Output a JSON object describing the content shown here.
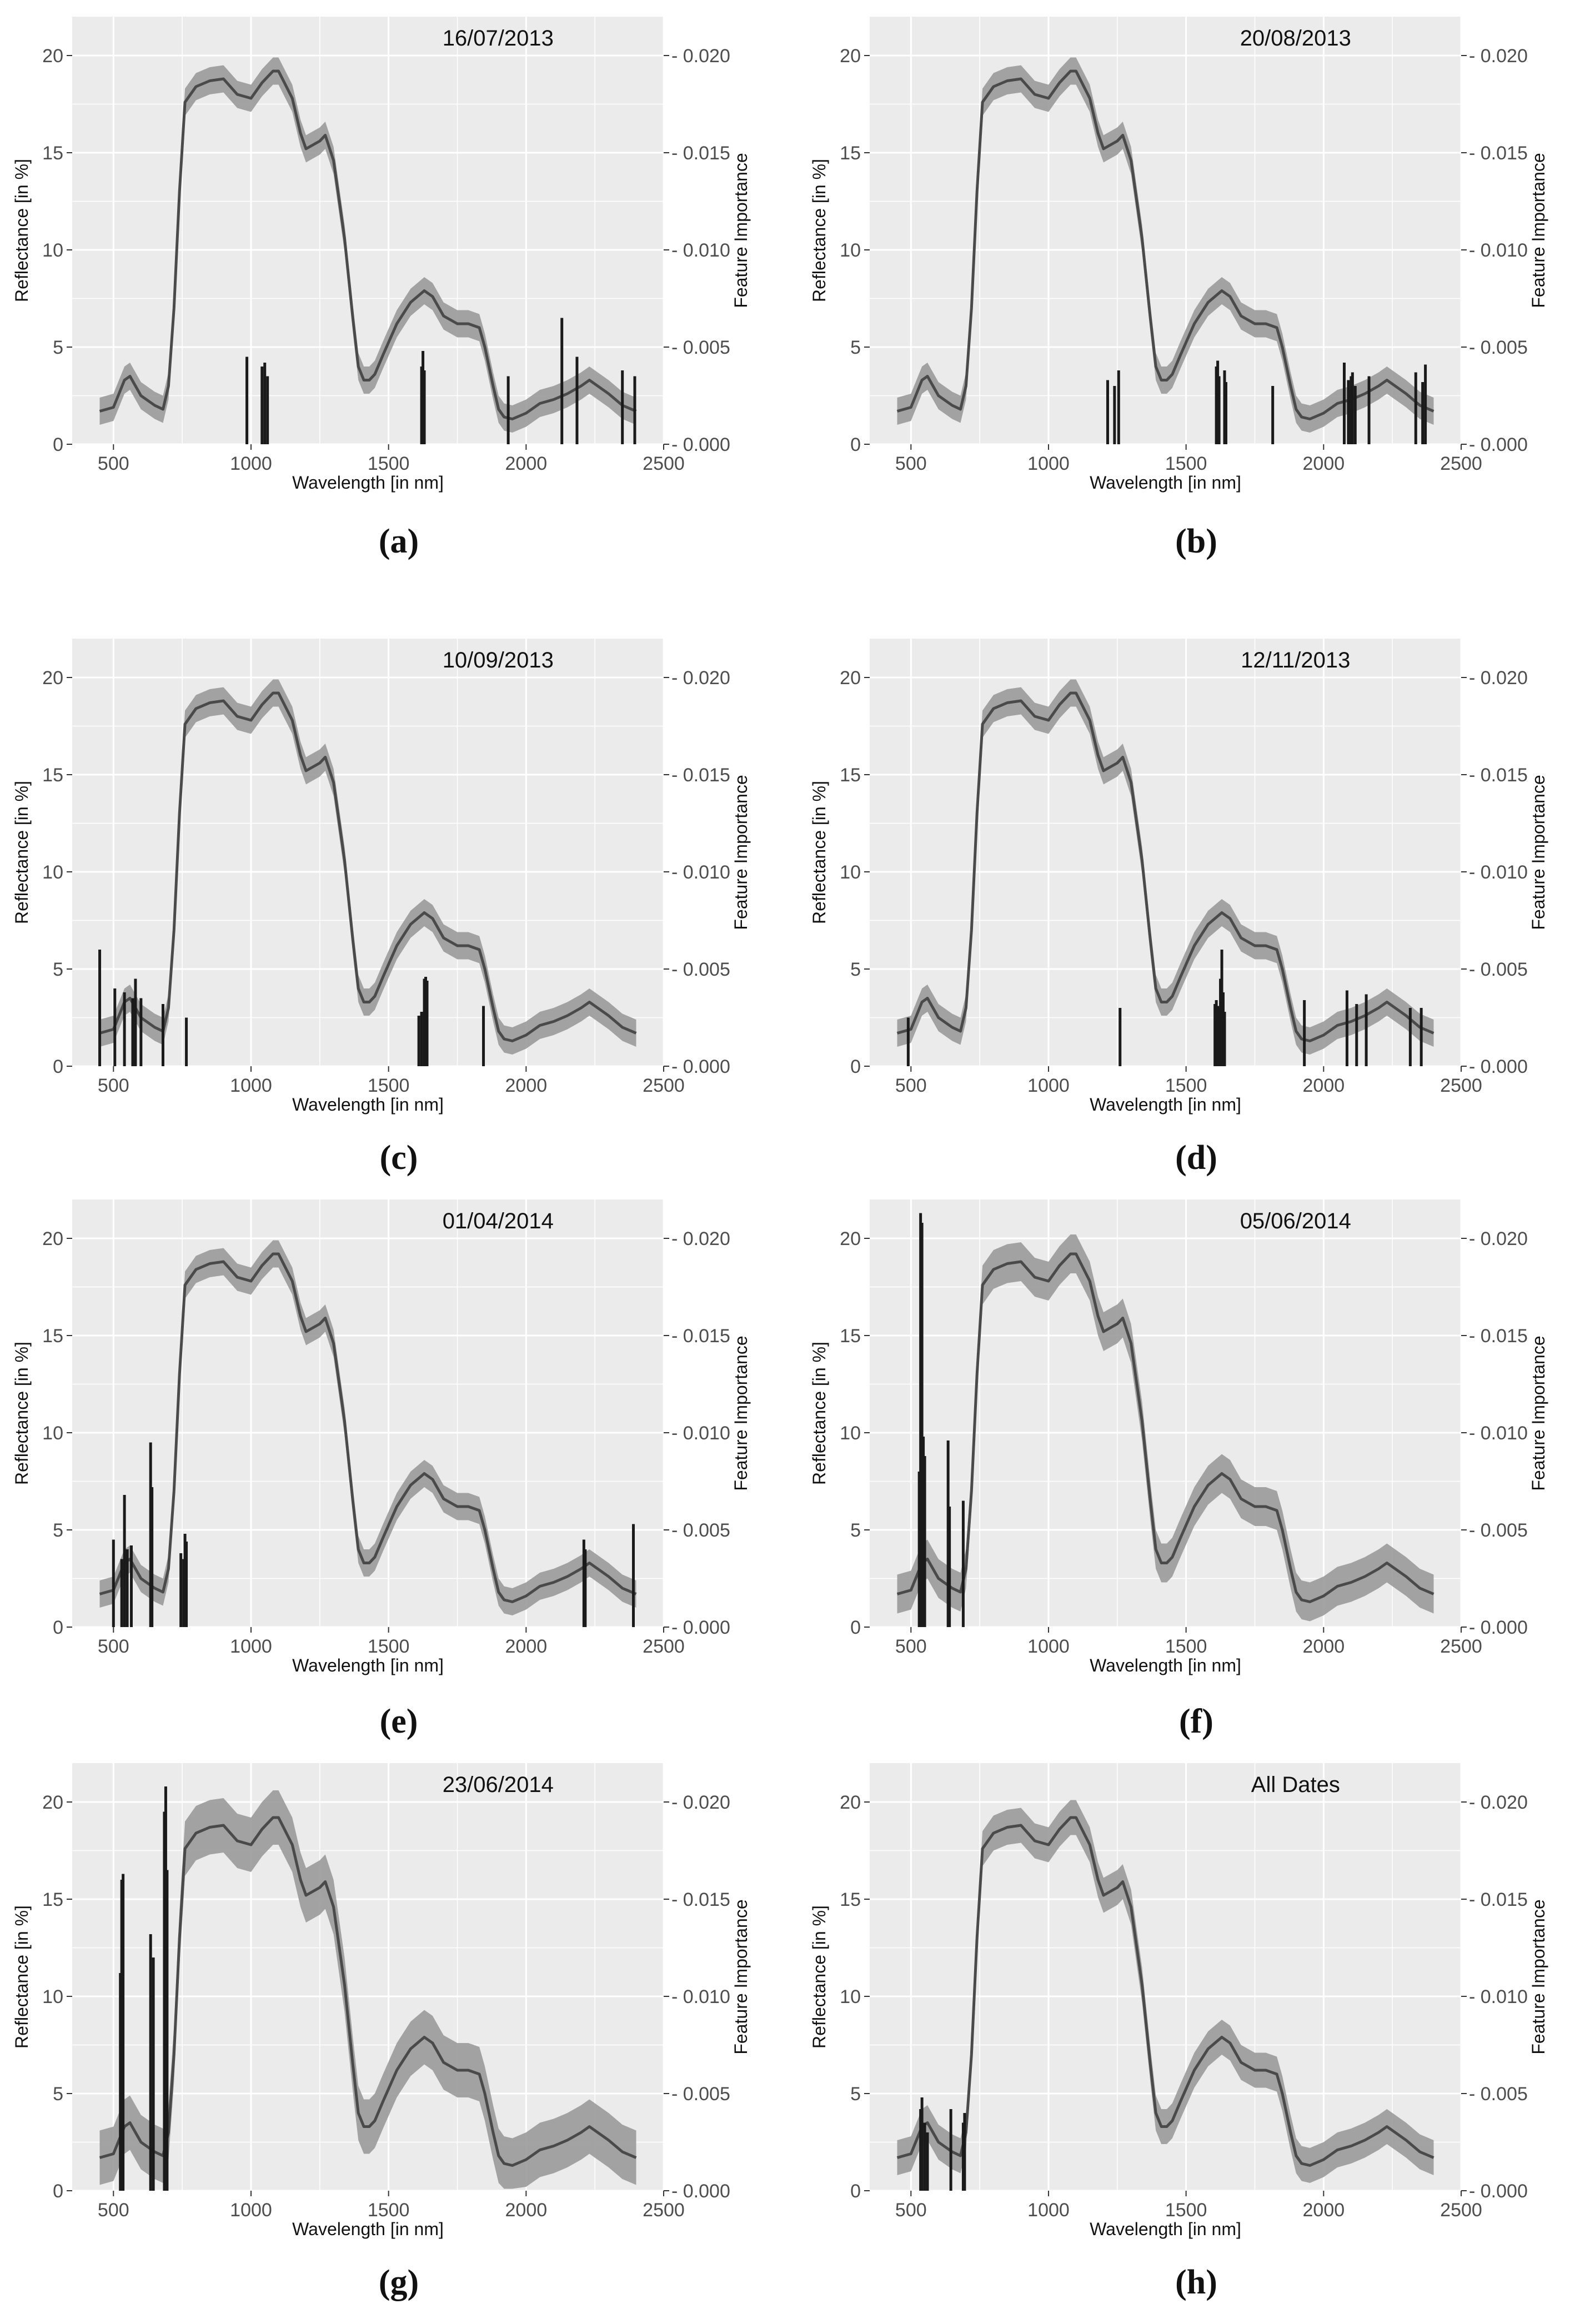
{
  "figure": {
    "shared_axes": {
      "xlabel": "Wavelength [in nm]",
      "ylabel_left": "Reflectance [in %]",
      "ylabel_right": "Feature Importance",
      "x_ticks": [
        500,
        1000,
        1500,
        2000,
        2500
      ],
      "y_left_ticks": [
        0,
        5,
        10,
        15,
        20
      ],
      "y_right_ticks": [
        "0.000",
        "0.005",
        "0.010",
        "0.015",
        "0.020"
      ]
    },
    "colors": {
      "panel_bg": "#ebebeb",
      "grid": "#ffffff",
      "band": "#9a9a9a",
      "line": "#4a4a4a",
      "bars": "#1a1a1a"
    }
  },
  "chart_data": [
    {
      "type": "line",
      "panel_label": "a",
      "title": "16/07/2013",
      "xlabel": "Wavelength [in nm]",
      "ylabel": "Reflectance [in %]",
      "y2label": "Feature Importance",
      "xlim": [
        350,
        2500
      ],
      "ylim": [
        0,
        22
      ],
      "y2lim": [
        0,
        0.022
      ],
      "series": [
        {
          "name": "Mean reflectance",
          "band_halfwidth": 0.7
        },
        {
          "name": "Feature importance",
          "bars": [
            [
              985,
              0.0045
            ],
            [
              1040,
              0.004
            ],
            [
              1050,
              0.0042
            ],
            [
              1060,
              0.0035
            ],
            [
              1620,
              0.004
            ],
            [
              1625,
              0.0048
            ],
            [
              1630,
              0.0038
            ],
            [
              1935,
              0.0035
            ],
            [
              2130,
              0.0065
            ],
            [
              2185,
              0.0045
            ],
            [
              2350,
              0.0038
            ],
            [
              2395,
              0.0035
            ]
          ]
        }
      ]
    },
    {
      "type": "line",
      "panel_label": "b",
      "title": "20/08/2013",
      "xlabel": "Wavelength [in nm]",
      "ylabel": "Reflectance [in %]",
      "y2label": "Feature Importance",
      "xlim": [
        350,
        2500
      ],
      "ylim": [
        0,
        22
      ],
      "y2lim": [
        0,
        0.022
      ],
      "series": [
        {
          "name": "Mean reflectance",
          "band_halfwidth": 0.7
        },
        {
          "name": "Feature importance",
          "bars": [
            [
              1215,
              0.0033
            ],
            [
              1240,
              0.003
            ],
            [
              1255,
              0.0038
            ],
            [
              1610,
              0.004
            ],
            [
              1615,
              0.0043
            ],
            [
              1620,
              0.0035
            ],
            [
              1640,
              0.0038
            ],
            [
              1645,
              0.0032
            ],
            [
              1815,
              0.003
            ],
            [
              2075,
              0.0042
            ],
            [
              2090,
              0.0033
            ],
            [
              2095,
              0.0028
            ],
            [
              2100,
              0.0035
            ],
            [
              2105,
              0.0037
            ],
            [
              2115,
              0.003
            ],
            [
              2165,
              0.0035
            ],
            [
              2335,
              0.0037
            ],
            [
              2360,
              0.0032
            ],
            [
              2370,
              0.0041
            ]
          ]
        }
      ]
    },
    {
      "type": "line",
      "panel_label": "c",
      "title": "10/09/2013",
      "xlabel": "Wavelength [in nm]",
      "ylabel": "Reflectance [in %]",
      "y2label": "Feature Importance",
      "xlim": [
        350,
        2500
      ],
      "ylim": [
        0,
        22
      ],
      "y2lim": [
        0,
        0.022
      ],
      "series": [
        {
          "name": "Mean reflectance",
          "band_halfwidth": 0.7
        },
        {
          "name": "Feature importance",
          "bars": [
            [
              450,
              0.006
            ],
            [
              505,
              0.004
            ],
            [
              540,
              0.0038
            ],
            [
              570,
              0.0035
            ],
            [
              580,
              0.0045
            ],
            [
              600,
              0.0035
            ],
            [
              680,
              0.0032
            ],
            [
              765,
              0.0025
            ],
            [
              1610,
              0.0026
            ],
            [
              1620,
              0.0028
            ],
            [
              1630,
              0.0045
            ],
            [
              1635,
              0.0046
            ],
            [
              1640,
              0.0044
            ],
            [
              1845,
              0.0031
            ]
          ]
        }
      ]
    },
    {
      "type": "line",
      "panel_label": "d",
      "title": "12/11/2013",
      "xlabel": "Wavelength [in nm]",
      "ylabel": "Reflectance [in %]",
      "y2label": "Feature Importance",
      "xlim": [
        350,
        2500
      ],
      "ylim": [
        0,
        22
      ],
      "y2lim": [
        0,
        0.022
      ],
      "series": [
        {
          "name": "Mean reflectance",
          "band_halfwidth": 0.7
        },
        {
          "name": "Feature importance",
          "bars": [
            [
              490,
              0.0025
            ],
            [
              1260,
              0.003
            ],
            [
              1605,
              0.0032
            ],
            [
              1610,
              0.0034
            ],
            [
              1615,
              0.0031
            ],
            [
              1620,
              0.003
            ],
            [
              1625,
              0.0045
            ],
            [
              1630,
              0.006
            ],
            [
              1635,
              0.0038
            ],
            [
              1640,
              0.0028
            ],
            [
              1930,
              0.0034
            ],
            [
              2085,
              0.0039
            ],
            [
              2120,
              0.0032
            ],
            [
              2155,
              0.0037
            ],
            [
              2315,
              0.003
            ],
            [
              2355,
              0.003
            ]
          ]
        }
      ]
    },
    {
      "type": "line",
      "panel_label": "e",
      "title": "01/04/2014",
      "xlabel": "Wavelength [in nm]",
      "ylabel": "Reflectance [in %]",
      "y2label": "Feature Importance",
      "xlim": [
        350,
        2500
      ],
      "ylim": [
        0,
        22
      ],
      "y2lim": [
        0,
        0.022
      ],
      "series": [
        {
          "name": "Mean reflectance",
          "band_halfwidth": 0.7
        },
        {
          "name": "Feature importance",
          "bars": [
            [
              500,
              0.0045
            ],
            [
              530,
              0.0035
            ],
            [
              540,
              0.0068
            ],
            [
              550,
              0.004
            ],
            [
              565,
              0.0042
            ],
            [
              635,
              0.0095
            ],
            [
              640,
              0.0072
            ],
            [
              745,
              0.0038
            ],
            [
              755,
              0.0035
            ],
            [
              760,
              0.0048
            ],
            [
              765,
              0.0044
            ],
            [
              2210,
              0.0045
            ],
            [
              2215,
              0.004
            ],
            [
              2390,
              0.0053
            ]
          ]
        }
      ]
    },
    {
      "type": "line",
      "panel_label": "f",
      "title": "05/06/2014",
      "xlabel": "Wavelength [in nm]",
      "ylabel": "Reflectance [in %]",
      "y2label": "Feature Importance",
      "xlim": [
        350,
        2500
      ],
      "ylim": [
        0,
        22
      ],
      "y2lim": [
        0,
        0.022
      ],
      "series": [
        {
          "name": "Mean reflectance",
          "band_halfwidth": 1.0
        },
        {
          "name": "Feature importance",
          "bars": [
            [
              530,
              0.008
            ],
            [
              535,
              0.0213
            ],
            [
              540,
              0.0208
            ],
            [
              545,
              0.0098
            ],
            [
              550,
              0.0088
            ],
            [
              635,
              0.0096
            ],
            [
              640,
              0.0062
            ],
            [
              690,
              0.0065
            ]
          ]
        }
      ]
    },
    {
      "type": "line",
      "panel_label": "g",
      "title": "23/06/2014",
      "xlabel": "Wavelength [in nm]",
      "ylabel": "Reflectance [in %]",
      "y2label": "Feature Importance",
      "xlim": [
        350,
        2500
      ],
      "ylim": [
        0,
        22
      ],
      "y2lim": [
        0,
        0.022
      ],
      "series": [
        {
          "name": "Mean reflectance",
          "band_halfwidth": 1.4
        },
        {
          "name": "Feature importance",
          "bars": [
            [
              525,
              0.0112
            ],
            [
              530,
              0.016
            ],
            [
              535,
              0.0163
            ],
            [
              635,
              0.0132
            ],
            [
              645,
              0.012
            ],
            [
              685,
              0.0195
            ],
            [
              690,
              0.0208
            ],
            [
              695,
              0.0165
            ]
          ]
        }
      ]
    },
    {
      "type": "line",
      "panel_label": "h",
      "title": "All Dates",
      "xlabel": "Wavelength [in nm]",
      "ylabel": "Reflectance [in %]",
      "y2label": "Feature Importance",
      "xlim": [
        350,
        2500
      ],
      "ylim": [
        0,
        22
      ],
      "y2lim": [
        0,
        0.022
      ],
      "series": [
        {
          "name": "Mean reflectance",
          "band_halfwidth": 0.9
        },
        {
          "name": "Feature importance",
          "bars": [
            [
              535,
              0.0042
            ],
            [
              540,
              0.0048
            ],
            [
              550,
              0.0035
            ],
            [
              560,
              0.003
            ],
            [
              645,
              0.0042
            ],
            [
              690,
              0.0035
            ],
            [
              695,
              0.004
            ]
          ]
        }
      ]
    }
  ],
  "spectrum": {
    "wavelength": [
      450,
      500,
      540,
      560,
      600,
      650,
      680,
      700,
      720,
      740,
      760,
      800,
      850,
      900,
      950,
      1000,
      1040,
      1080,
      1100,
      1150,
      1180,
      1200,
      1250,
      1270,
      1300,
      1340,
      1370,
      1390,
      1410,
      1430,
      1450,
      1480,
      1530,
      1580,
      1630,
      1660,
      1700,
      1750,
      1790,
      1830,
      1850,
      1880,
      1900,
      1920,
      1950,
      2000,
      2050,
      2100,
      2150,
      2200,
      2230,
      2250,
      2300,
      2350,
      2400
    ],
    "reflectance": [
      1.7,
      1.9,
      3.3,
      3.5,
      2.5,
      2.0,
      1.8,
      3.0,
      7.0,
      13.0,
      17.6,
      18.4,
      18.7,
      18.8,
      18.0,
      17.8,
      18.6,
      19.2,
      19.2,
      17.8,
      16.0,
      15.2,
      15.6,
      15.9,
      14.6,
      10.6,
      6.5,
      4.0,
      3.3,
      3.3,
      3.6,
      4.6,
      6.2,
      7.3,
      7.9,
      7.6,
      6.6,
      6.2,
      6.2,
      6.0,
      5.0,
      3.0,
      1.8,
      1.4,
      1.3,
      1.6,
      2.1,
      2.3,
      2.6,
      3.0,
      3.3,
      3.1,
      2.6,
      2.0,
      1.7
    ]
  },
  "captions": [
    {
      "label": "a",
      "text": "(a)"
    },
    {
      "label": "b",
      "text": "(b)"
    },
    {
      "label": "c",
      "text": "(c)"
    },
    {
      "label": "d",
      "text": "(d)"
    },
    {
      "label": "e",
      "text": "(e)"
    },
    {
      "label": "f",
      "text": "(f)"
    },
    {
      "label": "g",
      "text": "(g)"
    },
    {
      "label": "h",
      "text": "(h)"
    }
  ]
}
